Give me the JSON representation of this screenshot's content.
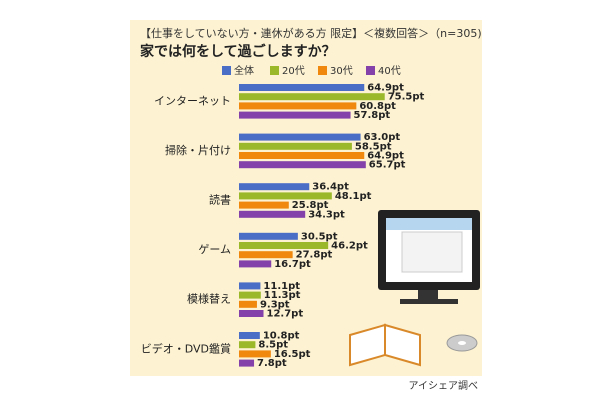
{
  "chart_data": {
    "type": "hbar",
    "title": "【仕事をしていない方・連休がある方 限定】＜複数回答＞（n=305)",
    "subtitle": "家では何をして過ごしますか？",
    "source": "アイシェア調べ",
    "categories": [
      "インターネット",
      "掃除・片付け",
      "読書",
      "ゲーム",
      "模様替え",
      "ビデオ・DVD鑑賞"
    ],
    "series": [
      {
        "name": "全体",
        "color": "#4a6dc6",
        "values": [
          64.9,
          63.0,
          36.4,
          30.5,
          11.1,
          10.8
        ],
        "value_labels": [
          "64.9pt",
          "63.0pt",
          "36.4pt",
          "30.5pt",
          "11.1pt",
          "10.8pt"
        ]
      },
      {
        "name": "20代",
        "color": "#9bb82a",
        "values": [
          75.5,
          58.5,
          48.1,
          46.2,
          11.3,
          8.5
        ],
        "value_labels": [
          "75.5pt",
          "58.5pt",
          "48.1pt",
          "46.2pt",
          "11.3pt",
          "8.5pt"
        ]
      },
      {
        "name": "30代",
        "color": "#f0880e",
        "values": [
          60.8,
          64.9,
          25.8,
          27.8,
          9.3,
          16.5
        ],
        "value_labels": [
          "60.8pt",
          "64.9pt",
          "25.8pt",
          "27.8pt",
          "9.3pt",
          "16.5pt"
        ]
      },
      {
        "name": "40代",
        "color": "#8341a9",
        "values": [
          57.8,
          65.7,
          34.3,
          16.7,
          12.7,
          7.8
        ],
        "value_labels": [
          "57.8pt",
          "65.7pt",
          "34.3pt",
          "16.7pt",
          "12.7pt",
          "7.8pt"
        ]
      }
    ]
  }
}
